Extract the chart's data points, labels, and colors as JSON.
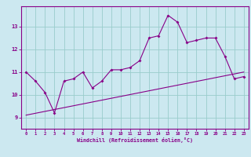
{
  "xlabel": "Windchill (Refroidissement éolien,°C)",
  "ylabel": "",
  "bg_color": "#cce8f0",
  "line_color": "#880088",
  "grid_color": "#99cccc",
  "x_ticks": [
    0,
    1,
    2,
    3,
    4,
    5,
    6,
    7,
    8,
    9,
    10,
    11,
    12,
    13,
    14,
    15,
    16,
    17,
    18,
    19,
    20,
    21,
    22,
    23
  ],
  "y_ticks": [
    9,
    10,
    11,
    12,
    13
  ],
  "ylim": [
    8.5,
    13.9
  ],
  "xlim": [
    -0.5,
    23.5
  ],
  "series1_x": [
    0,
    1,
    2,
    3,
    4,
    5,
    6,
    7,
    8,
    9,
    10,
    11,
    12,
    13,
    14,
    15,
    16,
    17,
    18,
    19,
    20,
    21,
    22,
    23
  ],
  "series1_y": [
    11.0,
    10.6,
    10.1,
    9.2,
    10.6,
    10.7,
    11.0,
    10.3,
    10.6,
    11.1,
    11.1,
    11.2,
    11.5,
    12.5,
    12.6,
    13.5,
    13.2,
    12.3,
    12.4,
    12.5,
    12.5,
    11.7,
    10.7,
    10.8
  ],
  "series2_x": [
    0,
    23
  ],
  "series2_y": [
    9.1,
    11.0
  ]
}
